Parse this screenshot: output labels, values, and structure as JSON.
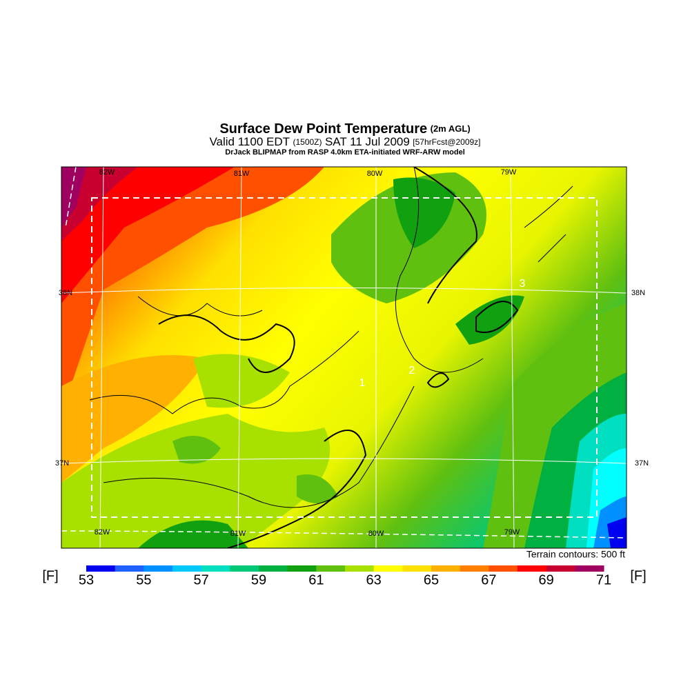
{
  "header": {
    "title": "Surface Dew Point Temperature",
    "title_note": "(2m AGL)",
    "valid": "Valid 1100 EDT",
    "valid_utc": "(1500Z)",
    "date": "SAT 11 Jul 2009",
    "forecast": "[57hrFcst@2009z]",
    "credit": "DrJack BLIPMAP from RASP 4.0km ETA-initiated WRF-ARW model"
  },
  "map": {
    "lon_labels_top": [
      "82W",
      "81W",
      "80W",
      "79W"
    ],
    "lon_labels_bottom": [
      "82W",
      "81W",
      "80W",
      "79W"
    ],
    "lat_labels_left": [
      "38N",
      "37N"
    ],
    "lat_labels_right": [
      "38N",
      "37N"
    ],
    "contour_labels": [
      "1",
      "2",
      "3"
    ],
    "terrain_note": "Terrain contours: 500 ft"
  },
  "colorbar": {
    "unit_left": "[F]",
    "unit_right": "[F]",
    "labels": [
      53,
      55,
      57,
      59,
      61,
      63,
      65,
      67,
      69,
      71
    ],
    "colors": [
      "#0000f0",
      "#2060ff",
      "#0090ff",
      "#00c8ff",
      "#00e0c0",
      "#00c878",
      "#00b040",
      "#10a010",
      "#60c010",
      "#a8e000",
      "#ffff00",
      "#ffe000",
      "#ffb000",
      "#ff8000",
      "#ff5000",
      "#ff0000",
      "#c80030",
      "#a00060"
    ]
  }
}
